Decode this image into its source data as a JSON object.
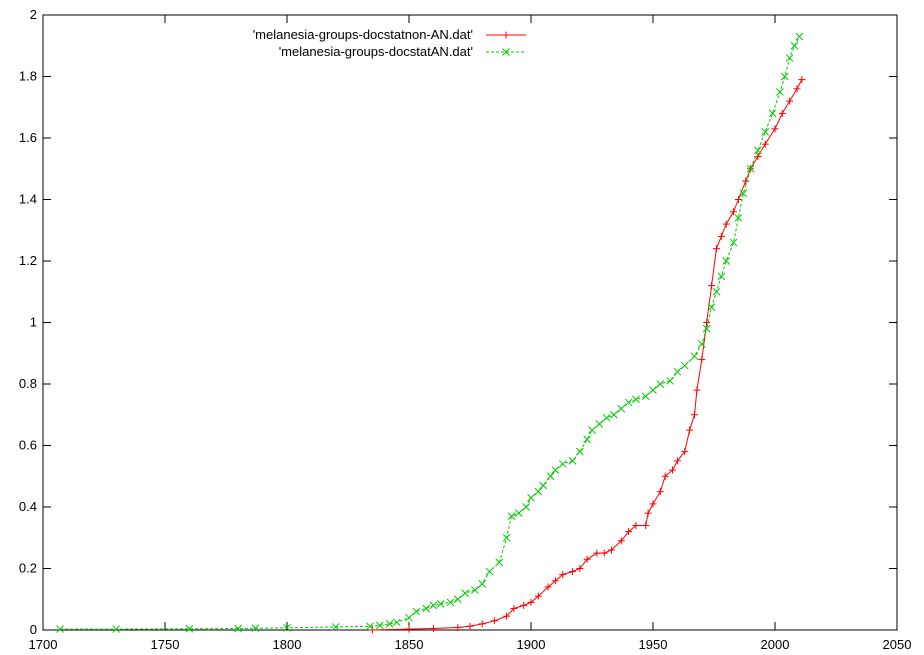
{
  "chart_data": {
    "type": "line",
    "title": "",
    "xlabel": "",
    "ylabel": "",
    "xlim": [
      1700,
      2050
    ],
    "ylim": [
      0,
      2
    ],
    "xticks": [
      1700,
      1750,
      1800,
      1850,
      1900,
      1950,
      2000,
      2050
    ],
    "yticks": [
      0,
      0.2,
      0.4,
      0.6,
      0.8,
      1,
      1.2,
      1.4,
      1.6,
      1.8,
      2
    ],
    "grid": false,
    "legend_position": "top-center",
    "series": [
      {
        "name": "'melanesia-groups-docstatnon-AN.dat'",
        "color": "#ff0000",
        "marker": "plus",
        "points": [
          [
            1835,
            0.0
          ],
          [
            1850,
            0.003
          ],
          [
            1860,
            0.005
          ],
          [
            1870,
            0.008
          ],
          [
            1875,
            0.012
          ],
          [
            1880,
            0.02
          ],
          [
            1885,
            0.03
          ],
          [
            1890,
            0.045
          ],
          [
            1893,
            0.07
          ],
          [
            1897,
            0.08
          ],
          [
            1900,
            0.09
          ],
          [
            1903,
            0.11
          ],
          [
            1907,
            0.14
          ],
          [
            1910,
            0.16
          ],
          [
            1913,
            0.18
          ],
          [
            1917,
            0.19
          ],
          [
            1920,
            0.2
          ],
          [
            1923,
            0.23
          ],
          [
            1927,
            0.25
          ],
          [
            1930,
            0.25
          ],
          [
            1933,
            0.26
          ],
          [
            1937,
            0.29
          ],
          [
            1940,
            0.32
          ],
          [
            1943,
            0.34
          ],
          [
            1947,
            0.34
          ],
          [
            1948,
            0.38
          ],
          [
            1950,
            0.41
          ],
          [
            1953,
            0.45
          ],
          [
            1955,
            0.5
          ],
          [
            1958,
            0.52
          ],
          [
            1960,
            0.55
          ],
          [
            1963,
            0.58
          ],
          [
            1965,
            0.65
          ],
          [
            1967,
            0.7
          ],
          [
            1968,
            0.78
          ],
          [
            1970,
            0.88
          ],
          [
            1972,
            1.0
          ],
          [
            1974,
            1.12
          ],
          [
            1976,
            1.24
          ],
          [
            1978,
            1.28
          ],
          [
            1980,
            1.32
          ],
          [
            1983,
            1.36
          ],
          [
            1985,
            1.4
          ],
          [
            1988,
            1.46
          ],
          [
            1990,
            1.5
          ],
          [
            1993,
            1.54
          ],
          [
            1996,
            1.58
          ],
          [
            2000,
            1.63
          ],
          [
            2003,
            1.68
          ],
          [
            2006,
            1.72
          ],
          [
            2009,
            1.76
          ],
          [
            2011,
            1.79
          ]
        ]
      },
      {
        "name": "'melanesia-groups-docstatAN.dat'",
        "color": "#00cc00",
        "marker": "cross",
        "points": [
          [
            1707,
            0.003
          ],
          [
            1730,
            0.003
          ],
          [
            1760,
            0.004
          ],
          [
            1780,
            0.005
          ],
          [
            1787,
            0.006
          ],
          [
            1800,
            0.007
          ],
          [
            1820,
            0.01
          ],
          [
            1834,
            0.012
          ],
          [
            1838,
            0.015
          ],
          [
            1842,
            0.02
          ],
          [
            1845,
            0.025
          ],
          [
            1850,
            0.04
          ],
          [
            1853,
            0.06
          ],
          [
            1857,
            0.07
          ],
          [
            1860,
            0.08
          ],
          [
            1863,
            0.085
          ],
          [
            1867,
            0.09
          ],
          [
            1870,
            0.1
          ],
          [
            1873,
            0.12
          ],
          [
            1877,
            0.13
          ],
          [
            1880,
            0.15
          ],
          [
            1883,
            0.19
          ],
          [
            1887,
            0.22
          ],
          [
            1890,
            0.3
          ],
          [
            1892,
            0.37
          ],
          [
            1895,
            0.38
          ],
          [
            1898,
            0.4
          ],
          [
            1900,
            0.43
          ],
          [
            1903,
            0.45
          ],
          [
            1905,
            0.47
          ],
          [
            1908,
            0.5
          ],
          [
            1910,
            0.52
          ],
          [
            1913,
            0.54
          ],
          [
            1917,
            0.55
          ],
          [
            1920,
            0.58
          ],
          [
            1923,
            0.62
          ],
          [
            1925,
            0.65
          ],
          [
            1928,
            0.67
          ],
          [
            1931,
            0.69
          ],
          [
            1934,
            0.7
          ],
          [
            1937,
            0.72
          ],
          [
            1940,
            0.74
          ],
          [
            1943,
            0.75
          ],
          [
            1947,
            0.76
          ],
          [
            1950,
            0.78
          ],
          [
            1953,
            0.8
          ],
          [
            1957,
            0.81
          ],
          [
            1960,
            0.84
          ],
          [
            1963,
            0.86
          ],
          [
            1967,
            0.89
          ],
          [
            1970,
            0.93
          ],
          [
            1972,
            0.98
          ],
          [
            1974,
            1.05
          ],
          [
            1976,
            1.1
          ],
          [
            1978,
            1.15
          ],
          [
            1980,
            1.2
          ],
          [
            1983,
            1.26
          ],
          [
            1985,
            1.34
          ],
          [
            1987,
            1.42
          ],
          [
            1990,
            1.5
          ],
          [
            1993,
            1.56
          ],
          [
            1996,
            1.62
          ],
          [
            1999,
            1.68
          ],
          [
            2002,
            1.75
          ],
          [
            2004,
            1.8
          ],
          [
            2006,
            1.86
          ],
          [
            2008,
            1.9
          ],
          [
            2010,
            1.93
          ]
        ]
      }
    ]
  }
}
